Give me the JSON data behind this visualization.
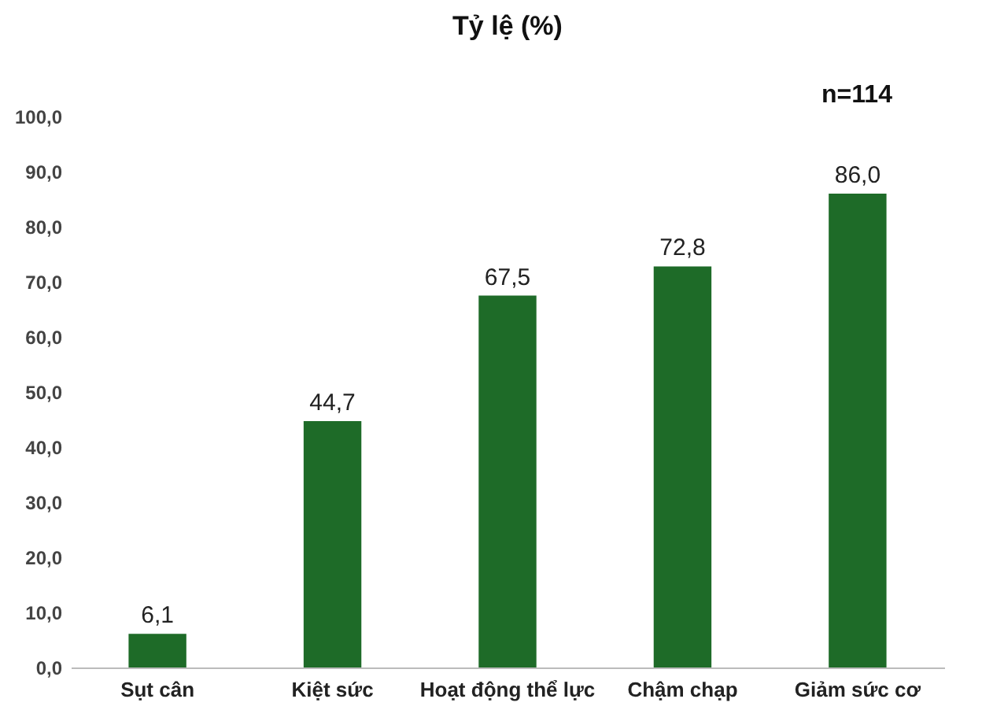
{
  "chart_data": {
    "type": "bar",
    "title": "Tỷ lệ (%)",
    "categories": [
      "Sụt cân",
      "Kiệt sức",
      "Hoạt động thể lực",
      "Chậm chạp",
      "Giảm sức cơ"
    ],
    "values": [
      6.1,
      44.7,
      67.5,
      72.8,
      86.0
    ],
    "value_labels": [
      "6,1",
      "44,7",
      "67,5",
      "72,8",
      "86,0"
    ],
    "color": "#1e6b28",
    "ylim": [
      0,
      100
    ],
    "yticks": [
      {
        "value": 0,
        "label": "0,0"
      },
      {
        "value": 10,
        "label": "10,0"
      },
      {
        "value": 20,
        "label": "20,0"
      },
      {
        "value": 30,
        "label": "30,0"
      },
      {
        "value": 40,
        "label": "40,0"
      },
      {
        "value": 50,
        "label": "50,0"
      },
      {
        "value": 60,
        "label": "60,0"
      },
      {
        "value": 70,
        "label": "70,0"
      },
      {
        "value": 80,
        "label": "80,0"
      },
      {
        "value": 90,
        "label": "90,0"
      },
      {
        "value": 100,
        "label": "100,0"
      }
    ],
    "annotations": [
      "n=114"
    ],
    "grid": false
  }
}
